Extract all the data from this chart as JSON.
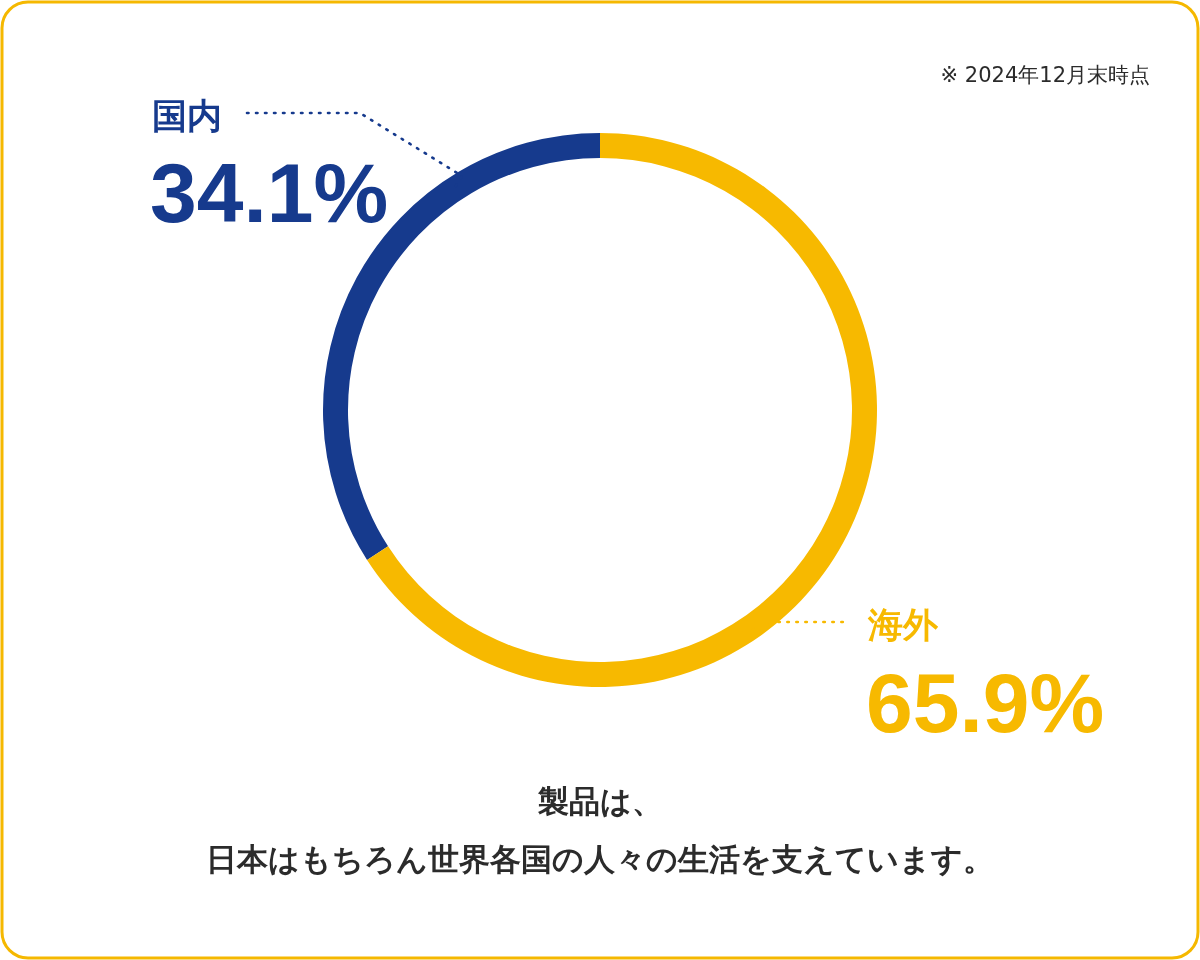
{
  "chart_data": {
    "type": "donut",
    "categories": [
      "国内",
      "海外"
    ],
    "values": [
      34.1,
      65.9
    ],
    "colors": [
      "#163a8d",
      "#f7b900"
    ],
    "value_labels": [
      "34.1%",
      "65.9%"
    ],
    "annotations": [
      "※ 2024年12月末時点",
      "製品は、",
      "日本はもちろん世界各国の人々の生活を支えています。"
    ]
  }
}
